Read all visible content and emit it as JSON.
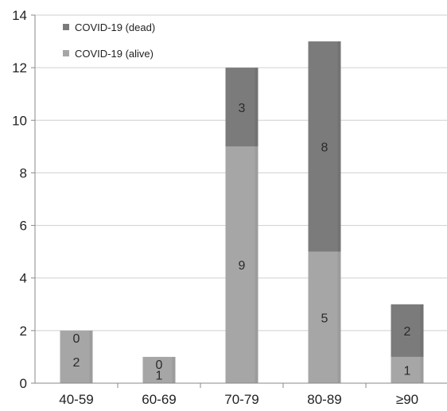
{
  "chart_data": {
    "type": "bar",
    "stacked": true,
    "categories": [
      "40-59",
      "60-69",
      "70-79",
      "80-89",
      "≥90"
    ],
    "series": [
      {
        "name": "COVID-19 (alive)",
        "values": [
          2,
          1,
          9,
          5,
          1
        ],
        "color": "#a6a6a6"
      },
      {
        "name": "COVID-19 (dead)",
        "values": [
          0,
          0,
          3,
          8,
          2
        ],
        "color": "#7b7b7b"
      }
    ],
    "ylim": [
      0,
      14
    ],
    "yticks": [
      0,
      2,
      4,
      6,
      8,
      10,
      12,
      14
    ],
    "grid": true,
    "legend_position": "top-left",
    "data_labels": true
  }
}
